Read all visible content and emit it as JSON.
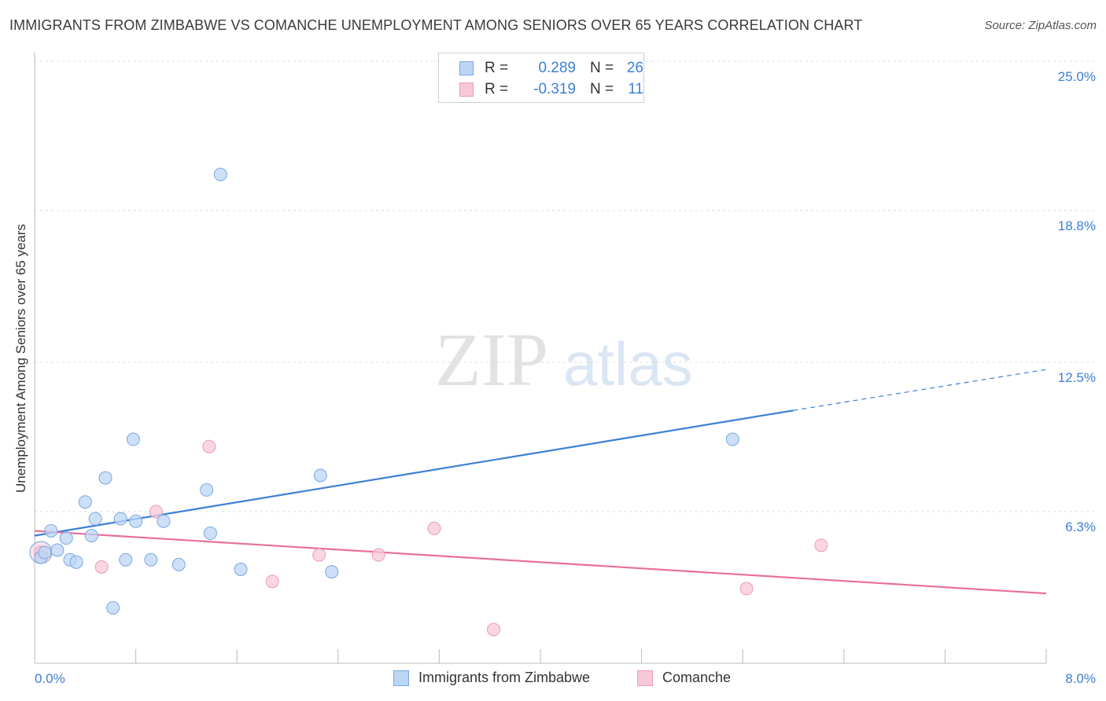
{
  "title": "IMMIGRANTS FROM ZIMBABWE VS COMANCHE UNEMPLOYMENT AMONG SENIORS OVER 65 YEARS CORRELATION CHART",
  "source": "Source: ZipAtlas.com",
  "colors": {
    "blue": "#3d7fd6",
    "blue_fill": "#bcd5f5",
    "blue_stroke": "#7aa7e0",
    "pink": "#e8709a",
    "pink_fill": "#f8c8d8",
    "pink_stroke": "#ec9ab6",
    "grid": "#dddddd",
    "tick_label": "#3d7fd6"
  },
  "legend": {
    "r_label": "R =",
    "n_label": "N =",
    "series1": {
      "r": "0.289",
      "n": "26"
    },
    "series2": {
      "r": "-0.319",
      "n": "11"
    }
  },
  "watermark": {
    "zip": "ZIP",
    "atlas": "atlas"
  },
  "chart_data": {
    "type": "scatter",
    "title": "IMMIGRANTS FROM ZIMBABWE VS COMANCHE UNEMPLOYMENT AMONG SENIORS OVER 65 YEARS CORRELATION CHART",
    "xlabel": "",
    "ylabel": "Unemployment Among Seniors over 65 years",
    "xlim": [
      0,
      8.0
    ],
    "ylim": [
      0,
      25.0
    ],
    "x_tick_labels": [
      "0.0%",
      "8.0%"
    ],
    "y_ticks": [
      6.3,
      12.5,
      18.8,
      25.0
    ],
    "y_tick_labels": [
      "6.3%",
      "12.5%",
      "18.8%",
      "25.0%"
    ],
    "grid": true,
    "legend_position": "top-center",
    "series": [
      {
        "name": "Immigrants from Zimbabwe",
        "color": "#3d7fd6",
        "r": 0.289,
        "n": 26,
        "trend": {
          "x": [
            0.0,
            6.0
          ],
          "y": [
            5.3,
            10.5
          ],
          "dashed_to": [
            8.0,
            12.2
          ]
        },
        "points": [
          {
            "x": 0.05,
            "y": 4.4
          },
          {
            "x": 0.13,
            "y": 5.5
          },
          {
            "x": 0.18,
            "y": 4.7
          },
          {
            "x": 0.25,
            "y": 5.2
          },
          {
            "x": 0.28,
            "y": 4.3
          },
          {
            "x": 0.33,
            "y": 4.2
          },
          {
            "x": 0.4,
            "y": 6.7
          },
          {
            "x": 0.45,
            "y": 5.3
          },
          {
            "x": 0.48,
            "y": 6.0
          },
          {
            "x": 0.56,
            "y": 7.7
          },
          {
            "x": 0.62,
            "y": 2.3
          },
          {
            "x": 0.68,
            "y": 6.0
          },
          {
            "x": 0.72,
            "y": 4.3
          },
          {
            "x": 0.78,
            "y": 9.3
          },
          {
            "x": 0.8,
            "y": 5.9
          },
          {
            "x": 0.92,
            "y": 4.3
          },
          {
            "x": 1.02,
            "y": 5.9
          },
          {
            "x": 1.14,
            "y": 4.1
          },
          {
            "x": 1.36,
            "y": 7.2
          },
          {
            "x": 1.39,
            "y": 5.4
          },
          {
            "x": 1.47,
            "y": 20.3
          },
          {
            "x": 1.63,
            "y": 3.9
          },
          {
            "x": 2.26,
            "y": 7.8
          },
          {
            "x": 2.35,
            "y": 3.8
          },
          {
            "x": 5.52,
            "y": 9.3
          },
          {
            "x": 0.08,
            "y": 4.6
          }
        ]
      },
      {
        "name": "Comanche",
        "color": "#e8709a",
        "r": -0.319,
        "n": 11,
        "trend": {
          "x": [
            0.0,
            8.0
          ],
          "y": [
            5.5,
            2.9
          ]
        },
        "points": [
          {
            "x": 0.05,
            "y": 4.6
          },
          {
            "x": 0.53,
            "y": 4.0
          },
          {
            "x": 0.96,
            "y": 6.3
          },
          {
            "x": 1.38,
            "y": 9.0
          },
          {
            "x": 1.88,
            "y": 3.4
          },
          {
            "x": 2.25,
            "y": 4.5
          },
          {
            "x": 2.72,
            "y": 4.5
          },
          {
            "x": 3.16,
            "y": 5.6
          },
          {
            "x": 3.63,
            "y": 1.4
          },
          {
            "x": 5.63,
            "y": 3.1
          },
          {
            "x": 6.22,
            "y": 4.9
          }
        ]
      }
    ]
  }
}
